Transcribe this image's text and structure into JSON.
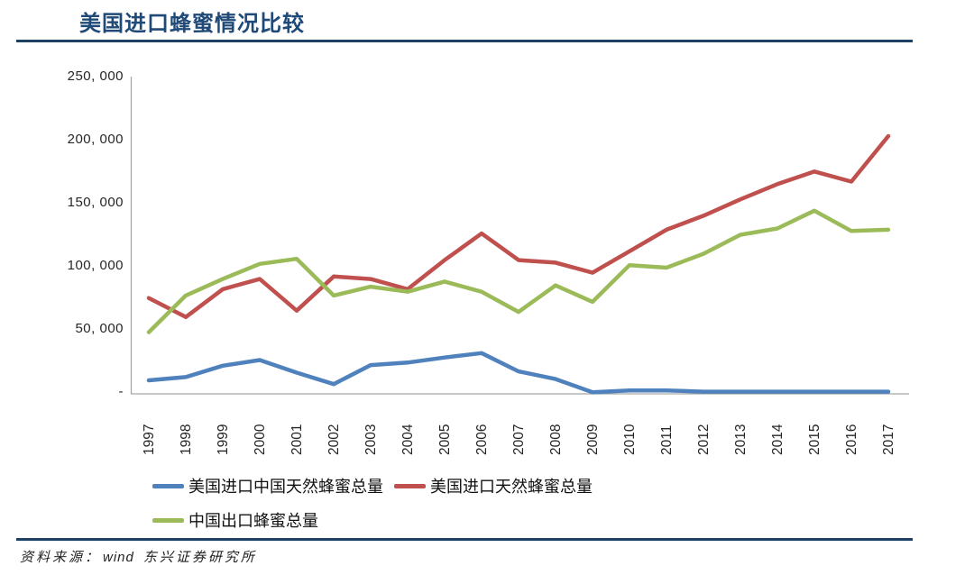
{
  "page": {
    "title": "美国进口蜂蜜情况比较"
  },
  "source": {
    "prefix": "资料来源：",
    "vendor": "wind",
    "org": "东兴证券研究所"
  },
  "colors": {
    "accent_navy": "#1B4265",
    "title_text": "#1F4977",
    "axis_line": "#A6A6A6",
    "series_blue": "#4F81BD",
    "series_red": "#C0504D",
    "series_green": "#9BBB59"
  },
  "chart_data": {
    "type": "line",
    "title": "美国进口蜂蜜情况比较",
    "categories": [
      "1997",
      "1998",
      "1999",
      "2000",
      "2001",
      "2002",
      "2003",
      "2004",
      "2005",
      "2006",
      "2007",
      "2008",
      "2009",
      "2010",
      "2011",
      "2012",
      "2013",
      "2014",
      "2015",
      "2016",
      "2017"
    ],
    "series": [
      {
        "name": "美国进口中国天然蜂蜜总量",
        "color": "#4F81BD",
        "values": [
          10000,
          12500,
          21500,
          26000,
          16000,
          7000,
          22000,
          24000,
          28000,
          31500,
          17000,
          11000,
          500,
          2000,
          2000,
          1000,
          1000,
          1000,
          1000,
          1000,
          1000
        ]
      },
      {
        "name": "美国进口天然蜂蜜总量",
        "color": "#C0504D",
        "values": [
          75000,
          60000,
          82000,
          90000,
          65000,
          92000,
          90000,
          82000,
          105000,
          126000,
          105000,
          103000,
          95000,
          112000,
          129000,
          140000,
          153000,
          165000,
          175000,
          167000,
          203000
        ]
      },
      {
        "name": "中国出口蜂蜜总量",
        "color": "#9BBB59",
        "values": [
          48000,
          77000,
          90000,
          102000,
          106000,
          77000,
          84000,
          80000,
          88000,
          80000,
          64000,
          85000,
          72000,
          101000,
          99000,
          110000,
          125000,
          130000,
          144000,
          128000,
          129000
        ]
      }
    ],
    "ylim": [
      0,
      250000
    ],
    "y_ticks": [
      "250, 000",
      "200, 000",
      "150, 000",
      "100, 000",
      "50, 000",
      "-"
    ],
    "xlabel": "",
    "ylabel": "",
    "grid": false,
    "legend_position": "bottom"
  }
}
